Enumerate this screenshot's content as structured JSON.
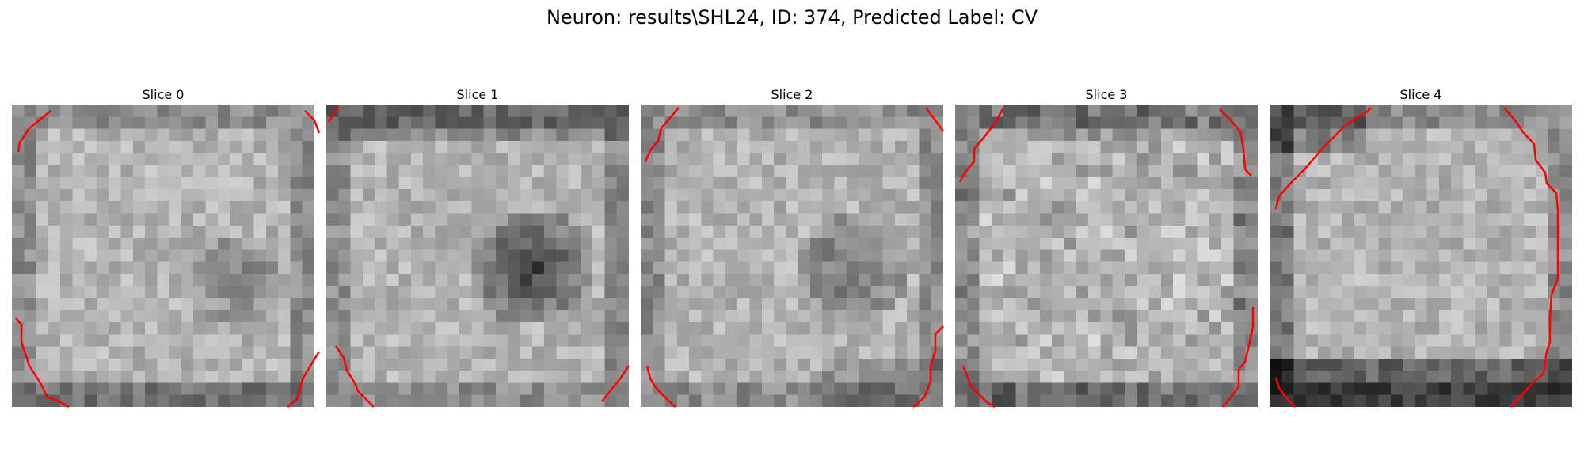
{
  "figure": {
    "suptitle": "Neuron: results\\SHL24, ID: 374, Predicted Label: CV"
  },
  "panels": [
    {
      "title": "Slice 0",
      "style": "blob-right"
    },
    {
      "title": "Slice 1",
      "style": "dark-center"
    },
    {
      "title": "Slice 2",
      "style": "dark-center-faint"
    },
    {
      "title": "Slice 3",
      "style": "noisy"
    },
    {
      "title": "Slice 4",
      "style": "dark-bottom"
    }
  ],
  "colors": {
    "contour": "#ff0000"
  }
}
